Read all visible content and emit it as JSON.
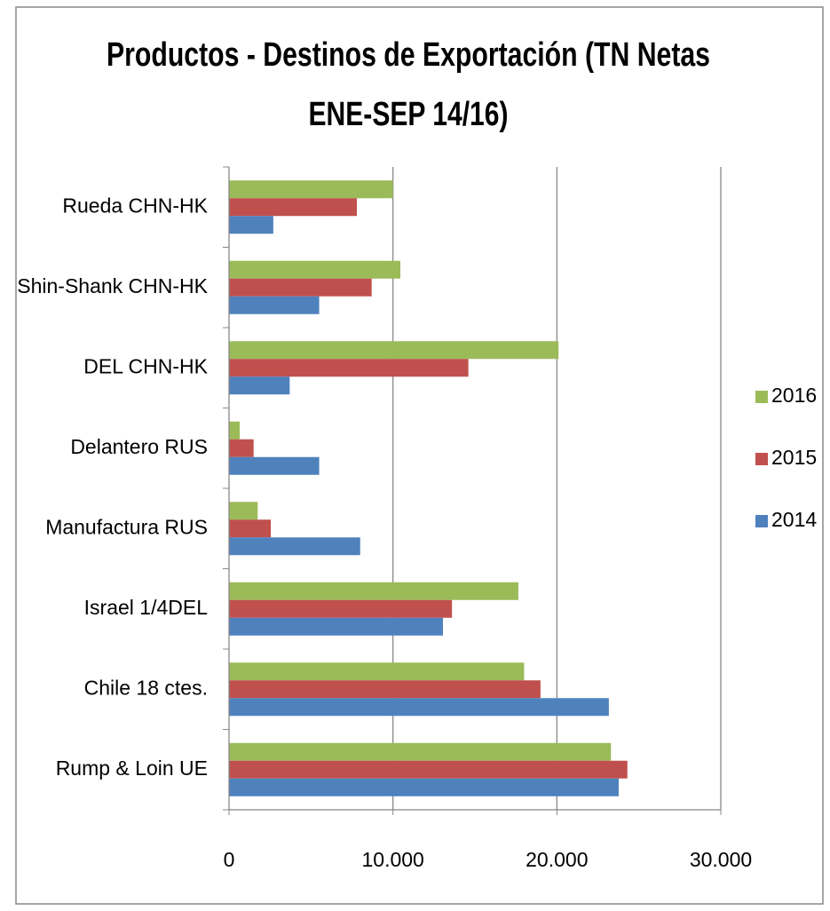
{
  "chart_data": {
    "type": "hbar",
    "title": [
      "Productos - Destinos de Exportación (TN Netas",
      "ENE-SEP 14/16)"
    ],
    "categories": [
      "Rueda CHN-HK",
      "Shin-Shank CHN-HK",
      "DEL CHN-HK",
      "Delantero RUS",
      "Manufactura RUS",
      "Israel 1/4DEL",
      "Chile 18 ctes.",
      "Rump & Loin UE"
    ],
    "series": [
      {
        "name": "2016",
        "color": "#9bbb59",
        "values": [
          10000,
          10450,
          20100,
          650,
          1750,
          17650,
          18000,
          23300
        ]
      },
      {
        "name": "2015",
        "color": "#c0504d",
        "values": [
          7800,
          8700,
          14600,
          1500,
          2550,
          13600,
          19000,
          24300
        ]
      },
      {
        "name": "2014",
        "color": "#4f81bd",
        "values": [
          2700,
          5500,
          3700,
          5500,
          8000,
          13050,
          23170,
          23770
        ]
      }
    ],
    "xlim": [
      0,
      30000
    ],
    "xticks": [
      0,
      {
        "value": 10000,
        "label": "10.000"
      },
      {
        "value": 20000,
        "label": "20.000"
      },
      {
        "value": 30000,
        "label": "30.000"
      }
    ],
    "grid": true,
    "legend": "right"
  }
}
